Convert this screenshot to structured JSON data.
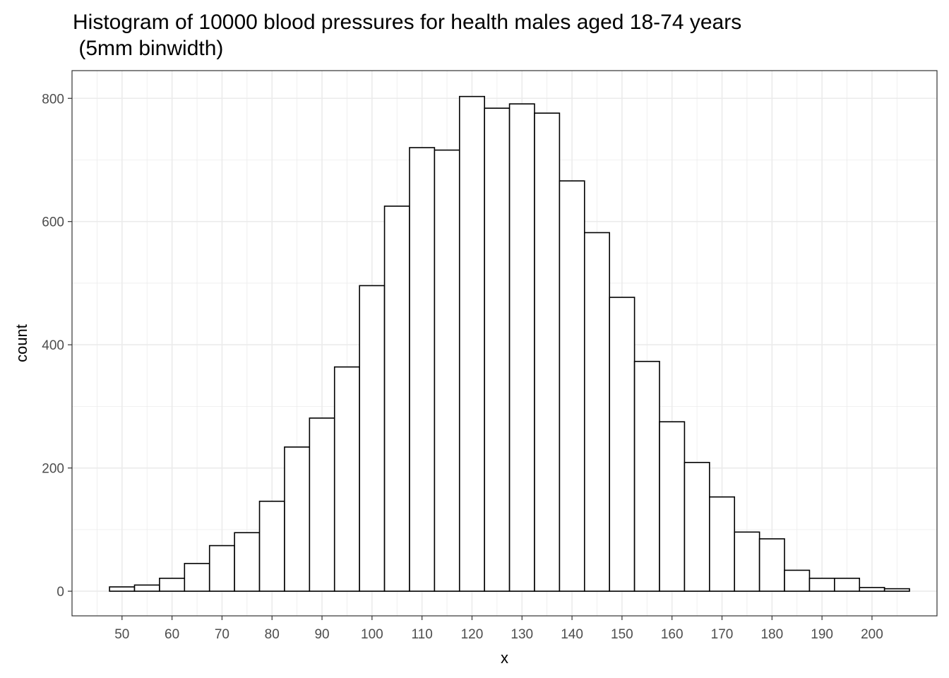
{
  "chart_data": {
    "type": "bar",
    "title": "Histogram of 10000 blood pressures for health males aged 18-74 years\n (5mm binwidth)",
    "xlabel": "x",
    "ylabel": "count",
    "binwidth": 5,
    "bin_centers": [
      50,
      55,
      60,
      65,
      70,
      75,
      80,
      85,
      90,
      95,
      100,
      105,
      110,
      115,
      120,
      125,
      130,
      135,
      140,
      145,
      150,
      155,
      160,
      165,
      170,
      175,
      180,
      185,
      190,
      195,
      200,
      205
    ],
    "values": [
      7,
      10,
      21,
      45,
      74,
      95,
      146,
      234,
      281,
      364,
      496,
      625,
      720,
      716,
      803,
      784,
      791,
      776,
      666,
      582,
      477,
      373,
      275,
      209,
      153,
      96,
      85,
      34,
      21,
      21,
      6,
      4
    ],
    "xlim": [
      40,
      213
    ],
    "ylim": [
      -40,
      845
    ],
    "x_ticks": [
      50,
      60,
      70,
      80,
      90,
      100,
      110,
      120,
      130,
      140,
      150,
      160,
      170,
      180,
      190,
      200
    ],
    "y_ticks": [
      0,
      200,
      400,
      600,
      800
    ],
    "bar_fill": "#ffffff",
    "bar_stroke": "#000000",
    "grid": true,
    "grid_color": "#ebebeb",
    "panel_border_color": "#333333",
    "theme": "bw"
  }
}
